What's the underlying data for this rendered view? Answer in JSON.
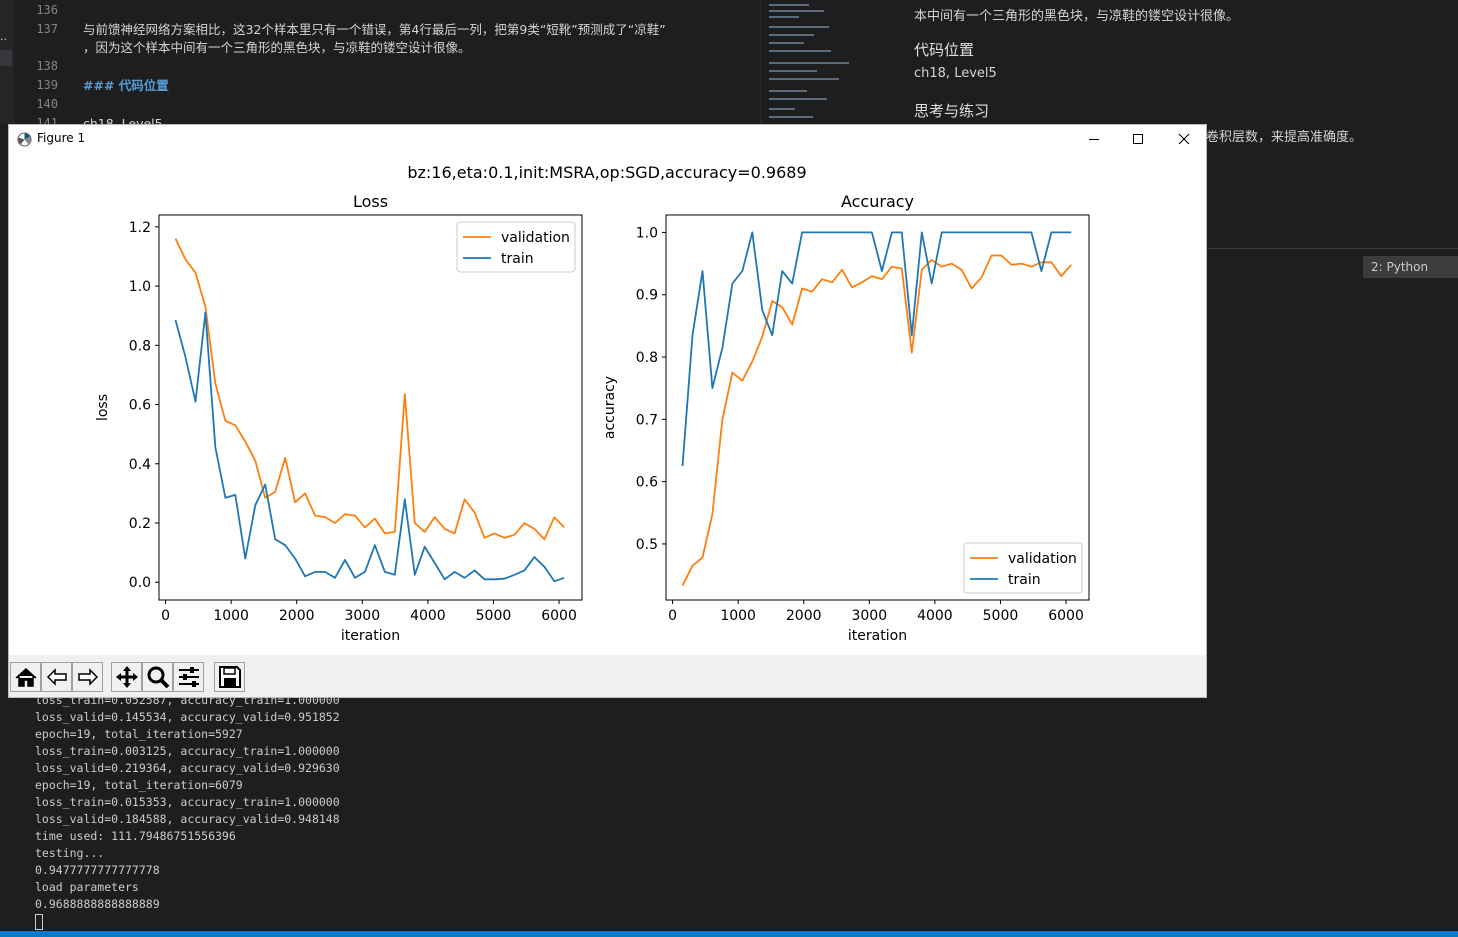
{
  "editor": {
    "lines": [
      {
        "num": "136",
        "text": ""
      },
      {
        "num": "137",
        "text": "与前馈神经网络方案相比，这32个样本里只有一个错误，第4行最后一列，把第9类“短靴”预测成了“凉鞋”"
      },
      {
        "num": "",
        "text": "，因为这个样本中间有一个三角形的黑色块，与凉鞋的镂空设计很像。"
      },
      {
        "num": "138",
        "text": ""
      },
      {
        "num": "139",
        "text": "### 代码位置"
      },
      {
        "num": "140",
        "text": ""
      },
      {
        "num": "141",
        "text": "ch18, Level5"
      }
    ]
  },
  "preview": {
    "para1": "本中间有一个三角形的黑色块，与凉鞋的镂空设计很像。",
    "heading1": "代码位置",
    "code_location": "ch18, Level5",
    "heading2": "思考与练习",
    "para2": "卷积层数，来提高准确度。"
  },
  "terminal_selector": "2: Python",
  "terminal": {
    "lines": [
      "loss_train=0.052587, accuracy_train=1.000000",
      "loss_valid=0.145534, accuracy_valid=0.951852",
      "epoch=19, total_iteration=5927",
      "loss_train=0.003125, accuracy_train=1.000000",
      "loss_valid=0.219364, accuracy_valid=0.929630",
      "epoch=19, total_iteration=6079",
      "loss_train=0.015353, accuracy_train=1.000000",
      "loss_valid=0.184588, accuracy_valid=0.948148",
      "time used: 111.79486751556396",
      "testing...",
      "0.9477777777777778",
      "load parameters",
      "0.9688888888888889"
    ]
  },
  "figure": {
    "window_title": "Figure 1",
    "suptitle": "bz:16,eta:0.1,init:MSRA,op:SGD,accuracy=0.9689",
    "toolbar_icons": [
      "home-icon",
      "back-icon",
      "forward-icon",
      "pan-icon",
      "zoom-icon",
      "configure-icon",
      "save-icon"
    ]
  },
  "colors": {
    "validation": "#ff7f0e",
    "train": "#1f77b4"
  },
  "chart_data": [
    {
      "type": "line",
      "title": "Loss",
      "xlabel": "iteration",
      "ylabel": "loss",
      "xlim": [
        -100,
        6350
      ],
      "ylim": [
        -0.06,
        1.24
      ],
      "xticks": [
        0,
        1000,
        2000,
        3000,
        4000,
        5000,
        6000
      ],
      "yticks": [
        0.0,
        0.2,
        0.4,
        0.6,
        0.8,
        1.0,
        1.2
      ],
      "ytick_labels": [
        "0.0",
        "0.2",
        "0.4",
        "0.6",
        "0.8",
        "1.0",
        "1.2"
      ],
      "legend": "upper right",
      "x": [
        152,
        304,
        456,
        608,
        760,
        912,
        1064,
        1216,
        1368,
        1520,
        1672,
        1824,
        1976,
        2128,
        2280,
        2432,
        2584,
        2736,
        2888,
        3040,
        3192,
        3344,
        3496,
        3648,
        3800,
        3952,
        4104,
        4256,
        4408,
        4560,
        4712,
        4864,
        5016,
        5168,
        5320,
        5472,
        5624,
        5776,
        5928,
        6079
      ],
      "series": [
        {
          "name": "validation",
          "values": [
            1.16,
            1.09,
            1.045,
            0.93,
            0.67,
            0.545,
            0.53,
            0.475,
            0.41,
            0.285,
            0.305,
            0.42,
            0.27,
            0.3,
            0.225,
            0.22,
            0.2,
            0.23,
            0.225,
            0.185,
            0.215,
            0.165,
            0.17,
            0.635,
            0.2,
            0.17,
            0.22,
            0.18,
            0.165,
            0.28,
            0.235,
            0.15,
            0.165,
            0.15,
            0.16,
            0.2,
            0.18,
            0.145,
            0.219,
            0.185
          ]
        },
        {
          "name": "train",
          "values": [
            0.885,
            0.76,
            0.61,
            0.91,
            0.455,
            0.285,
            0.295,
            0.08,
            0.26,
            0.33,
            0.145,
            0.125,
            0.08,
            0.02,
            0.035,
            0.035,
            0.015,
            0.075,
            0.015,
            0.035,
            0.125,
            0.035,
            0.025,
            0.28,
            0.025,
            0.12,
            0.065,
            0.01,
            0.035,
            0.015,
            0.04,
            0.01,
            0.01,
            0.012,
            0.025,
            0.04,
            0.085,
            0.052,
            0.003,
            0.015
          ]
        }
      ]
    },
    {
      "type": "line",
      "title": "Accuracy",
      "xlabel": "iteration",
      "ylabel": "accuracy",
      "xlim": [
        -100,
        6350
      ],
      "ylim": [
        0.41,
        1.028
      ],
      "xticks": [
        0,
        1000,
        2000,
        3000,
        4000,
        5000,
        6000
      ],
      "yticks": [
        0.5,
        0.6,
        0.7,
        0.8,
        0.9,
        1.0
      ],
      "ytick_labels": [
        "0.5",
        "0.6",
        "0.7",
        "0.8",
        "0.9",
        "1.0"
      ],
      "legend": "lower right",
      "x": [
        152,
        304,
        456,
        608,
        760,
        912,
        1064,
        1216,
        1368,
        1520,
        1672,
        1824,
        1976,
        2128,
        2280,
        2432,
        2584,
        2736,
        2888,
        3040,
        3192,
        3344,
        3496,
        3648,
        3800,
        3952,
        4104,
        4256,
        4408,
        4560,
        4712,
        4864,
        5016,
        5168,
        5320,
        5472,
        5624,
        5776,
        5928,
        6079
      ],
      "series": [
        {
          "name": "validation",
          "values": [
            0.433,
            0.465,
            0.478,
            0.548,
            0.7,
            0.775,
            0.762,
            0.793,
            0.833,
            0.89,
            0.88,
            0.852,
            0.91,
            0.905,
            0.925,
            0.92,
            0.94,
            0.912,
            0.92,
            0.93,
            0.925,
            0.945,
            0.942,
            0.807,
            0.94,
            0.956,
            0.945,
            0.95,
            0.94,
            0.91,
            0.928,
            0.963,
            0.963,
            0.948,
            0.95,
            0.945,
            0.952,
            0.952,
            0.93,
            0.948
          ]
        },
        {
          "name": "train",
          "values": [
            0.625,
            0.835,
            0.938,
            0.75,
            0.815,
            0.918,
            0.938,
            1.0,
            0.875,
            0.835,
            0.938,
            0.918,
            1.0,
            1.0,
            1.0,
            1.0,
            1.0,
            1.0,
            1.0,
            1.0,
            0.938,
            1.0,
            1.0,
            0.835,
            1.0,
            0.918,
            1.0,
            1.0,
            1.0,
            1.0,
            1.0,
            1.0,
            1.0,
            1.0,
            1.0,
            1.0,
            0.938,
            1.0,
            1.0,
            1.0
          ]
        }
      ]
    }
  ]
}
